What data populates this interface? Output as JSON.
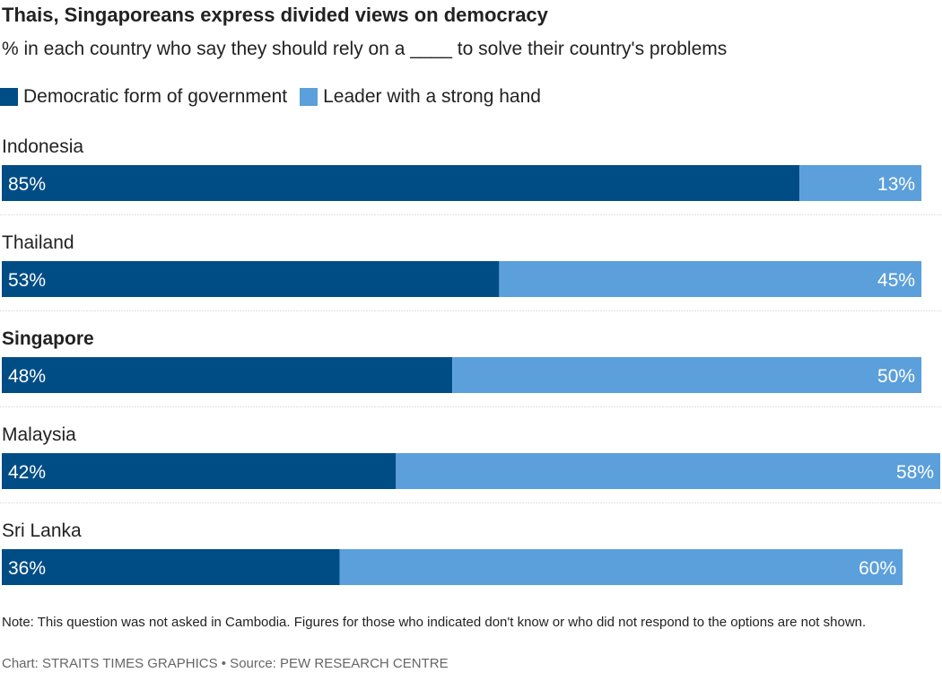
{
  "header": {
    "title": "Thais, Singaporeans express divided views on democracy",
    "subtitle": "% in each country who say they should rely on a ____ to solve their country's problems"
  },
  "legend": {
    "items": [
      {
        "label": "Democratic form of government",
        "color": "#004d85"
      },
      {
        "label": "Leader with a strong hand",
        "color": "#5b9fdb"
      }
    ]
  },
  "chart_data": {
    "type": "bar",
    "orientation": "horizontal",
    "stacked": true,
    "categories": [
      "Indonesia",
      "Thailand",
      "Singapore",
      "Malaysia",
      "Sri Lanka"
    ],
    "highlighted_category": "Singapore",
    "series": [
      {
        "name": "Democratic form of government",
        "color": "#004d85",
        "values": [
          85,
          53,
          48,
          42,
          36
        ]
      },
      {
        "name": "Leader with a strong hand",
        "color": "#5b9fdb",
        "values": [
          13,
          45,
          50,
          58,
          60
        ]
      }
    ],
    "value_suffix": "%",
    "xlim": [
      0,
      100
    ],
    "grid": false,
    "legend_position": "top-left"
  },
  "footer": {
    "note": "Note: This question was not asked in Cambodia. Figures for those who indicated don't know or who did not respond to the options are not shown.",
    "credit": "Chart: STRAITS TIMES GRAPHICS • Source: PEW RESEARCH CENTRE"
  }
}
